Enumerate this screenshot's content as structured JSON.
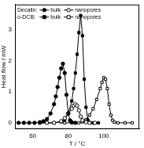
{
  "chart_data": {
    "type": "line",
    "x_label": "T / °C",
    "y_label": "Heat flow / mW",
    "xlim": [
      50,
      120
    ],
    "xticks": [
      60,
      80,
      100
    ],
    "ylim": [
      -0.2,
      3.8
    ],
    "yticks": [
      0,
      1,
      2,
      3
    ],
    "grid": false,
    "legend": "top",
    "series": [
      {
        "group": "Decalin:",
        "name": "bulk",
        "color": "#000000",
        "marker": "circle",
        "line_style": "solid",
        "x": [
          52,
          55,
          58,
          61,
          64,
          66,
          68,
          70,
          72,
          73,
          74,
          75,
          76,
          77,
          78,
          79,
          80,
          81,
          82,
          84
        ],
        "values": [
          0,
          0,
          0,
          0,
          0.02,
          0.05,
          0.12,
          0.3,
          0.6,
          0.85,
          1.15,
          1.45,
          1.75,
          1.9,
          1.6,
          0.9,
          0.3,
          0.08,
          0.02,
          0
        ]
      },
      {
        "group": "Decalin:",
        "name": "nanopores",
        "color": "#000000",
        "marker": "circle_open",
        "line_style": "solid",
        "x": [
          64,
          68,
          72,
          76,
          78,
          80,
          82,
          83,
          84,
          85,
          86,
          87,
          88,
          90,
          92,
          95
        ],
        "values": [
          0,
          0,
          0,
          0.05,
          0.15,
          0.3,
          0.45,
          0.55,
          0.6,
          0.55,
          0.4,
          0.2,
          0.08,
          0.02,
          0,
          0
        ]
      },
      {
        "group": "o-DCB:",
        "name": "bulk",
        "color": "#000000",
        "marker": "square",
        "line_style": "solid",
        "x": [
          64,
          68,
          72,
          76,
          78,
          80,
          82,
          83,
          84,
          85,
          86,
          87,
          88,
          89,
          90,
          91,
          92,
          94,
          97
        ],
        "values": [
          0,
          0,
          0,
          0.03,
          0.1,
          0.3,
          0.7,
          1.1,
          1.6,
          2.2,
          2.9,
          3.45,
          2.8,
          1.4,
          0.5,
          0.1,
          0.02,
          0,
          0
        ]
      },
      {
        "group": "o-DCB:",
        "name": "nanopores",
        "color": "#000000",
        "marker": "square_open",
        "line_style": "solid",
        "x": [
          78,
          82,
          86,
          88,
          90,
          92,
          94,
          96,
          98,
          99,
          100,
          101,
          102,
          103,
          104,
          105,
          106,
          108,
          112,
          116
        ],
        "values": [
          0,
          0,
          0,
          0.03,
          0.1,
          0.25,
          0.45,
          0.75,
          1.1,
          1.3,
          1.45,
          1.4,
          1.1,
          0.6,
          0.25,
          0.08,
          0.02,
          0,
          0,
          0
        ]
      }
    ]
  }
}
